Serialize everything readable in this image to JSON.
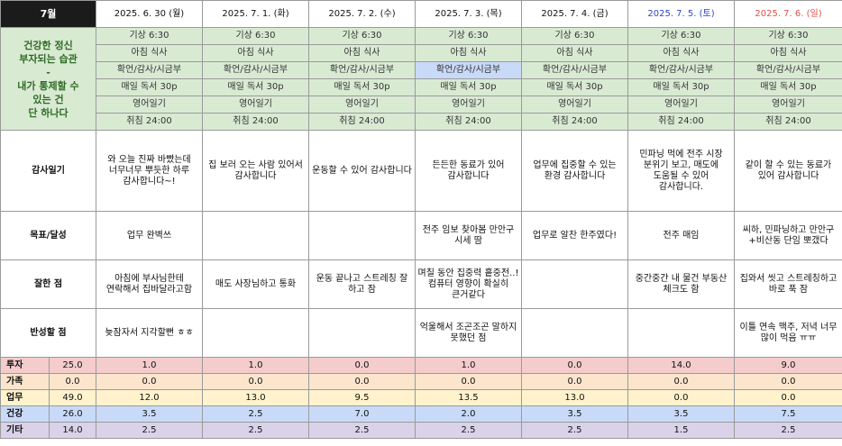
{
  "month": "7월",
  "days": [
    {
      "date": "2025. 6. 30 (월)",
      "type": "weekday"
    },
    {
      "date": "2025. 7. 1. (화)",
      "type": "weekday"
    },
    {
      "date": "2025. 7. 2. (수)",
      "type": "weekday"
    },
    {
      "date": "2025. 7. 3. (목)",
      "type": "weekday"
    },
    {
      "date": "2025. 7. 4. (금)",
      "type": "weekday"
    },
    {
      "date": "2025. 7. 5. (토)",
      "type": "sat"
    },
    {
      "date": "2025. 7. 6. (일)",
      "type": "sun"
    }
  ],
  "habit_label": {
    "line1": "건강한 정신",
    "line2": "부자되는 습관",
    "line3": "-",
    "line4": "내가 통제할 수",
    "line5": "있는 건",
    "line6": "단 하나다"
  },
  "habits": [
    [
      "기상 6:30",
      "기상 6:30",
      "기상 6:30",
      "기상 6:30",
      "기상 6:30",
      "기상 6:30",
      "기상 6:30"
    ],
    [
      "아침 식사",
      "아침 식사",
      "아침 식사",
      "아침 식사",
      "아침 식사",
      "아침 식사",
      "아침 식사"
    ],
    [
      "확언/감사/시금부",
      "확언/감사/시금부",
      "확언/감사/시금부",
      "확언/감사/시금부",
      "확언/감사/시금부",
      "확언/감사/시금부",
      "확언/감사/시금부"
    ],
    [
      "매일 독서 30p",
      "매일 독서 30p",
      "매일 독서 30p",
      "매일 독서 30p",
      "매일 독서 30p",
      "매일 독서 30p",
      "매일 독서 30p"
    ],
    [
      "영어일기",
      "영어일기",
      "영어일기",
      "영어일기",
      "영어일기",
      "영어일기",
      "영어일기"
    ],
    [
      "취침 24:00",
      "취침 24:00",
      "취침 24:00",
      "취침 24:00",
      "취침 24:00",
      "취침 24:00",
      "취침 24:00"
    ]
  ],
  "sections": [
    {
      "label": "감사일기",
      "cells": [
        "와 오늘 진짜 바빴는데 너무너무 뿌듯한 하루 감사합니다~!",
        "집 보러 오는 사람 있어서 감사합니다",
        "운동할 수 있어 감사합니다",
        "든든한 동료가 있어 감사합니다",
        "업무에 집중할 수 있는 환경 감사합니다",
        "민파닝 먹에 전주 시장 분위기 보고, 매도에 도움될 수 있어 감사합니다.",
        "같이 할 수 있는 동료가 있어 감사합니다"
      ]
    },
    {
      "label": "목표/달성",
      "cells": [
        "업무 완벽쓰",
        "",
        "",
        "전주 임보 찾아봄 만안구 시세 땀",
        "업무로 알찬 한주였다!",
        "전주 매임",
        "씨하, 민파닝하고 만안구+비산동 단임 뽀갰다"
      ]
    },
    {
      "label": "잘한 점",
      "cells": [
        "아침에 부사님한테 연락해서 집바달라고함",
        "매도 사장님하고 통화",
        "운동 끝나고 스트레칭 잘 하고 잠",
        "며칠 동안 집중력 흩중전..! 컴퓨터 영향이 확실히 큰거같다",
        "",
        "중간중간 내 물건 부동산 체크도 함",
        "집와서 씻고 스트레칭하고 바로 푹 잠"
      ]
    },
    {
      "label": "반성할 점",
      "cells": [
        "늦잠자서 지각할뻔 ㅎㅎ",
        "",
        "",
        "억울해서 조곤조곤 말하지 못했던 점",
        "",
        "",
        "이틀 연속 맥주, 저녁 너무 많이 먹음 ㅠㅠ"
      ]
    }
  ],
  "stats": [
    {
      "label": "투자",
      "total": "25.0",
      "values": [
        "1.0",
        "1.0",
        "0.0",
        "1.0",
        "0.0",
        "14.0",
        "9.0"
      ],
      "color": "#f4cccc"
    },
    {
      "label": "가족",
      "total": "0.0",
      "values": [
        "0.0",
        "0.0",
        "0.0",
        "0.0",
        "0.0",
        "0.0",
        "0.0"
      ],
      "color": "#fce5cd"
    },
    {
      "label": "업무",
      "total": "49.0",
      "values": [
        "12.0",
        "13.0",
        "9.5",
        "13.5",
        "13.0",
        "0.0",
        "0.0"
      ],
      "color": "#fff2cc"
    },
    {
      "label": "건강",
      "total": "26.0",
      "values": [
        "3.5",
        "2.5",
        "7.0",
        "2.0",
        "3.5",
        "3.5",
        "7.5"
      ],
      "color": "#c9daf8"
    },
    {
      "label": "기타",
      "total": "14.0",
      "values": [
        "2.5",
        "2.5",
        "2.5",
        "2.5",
        "2.5",
        "1.5",
        "2.5"
      ],
      "color": "#d9d2e9"
    }
  ]
}
